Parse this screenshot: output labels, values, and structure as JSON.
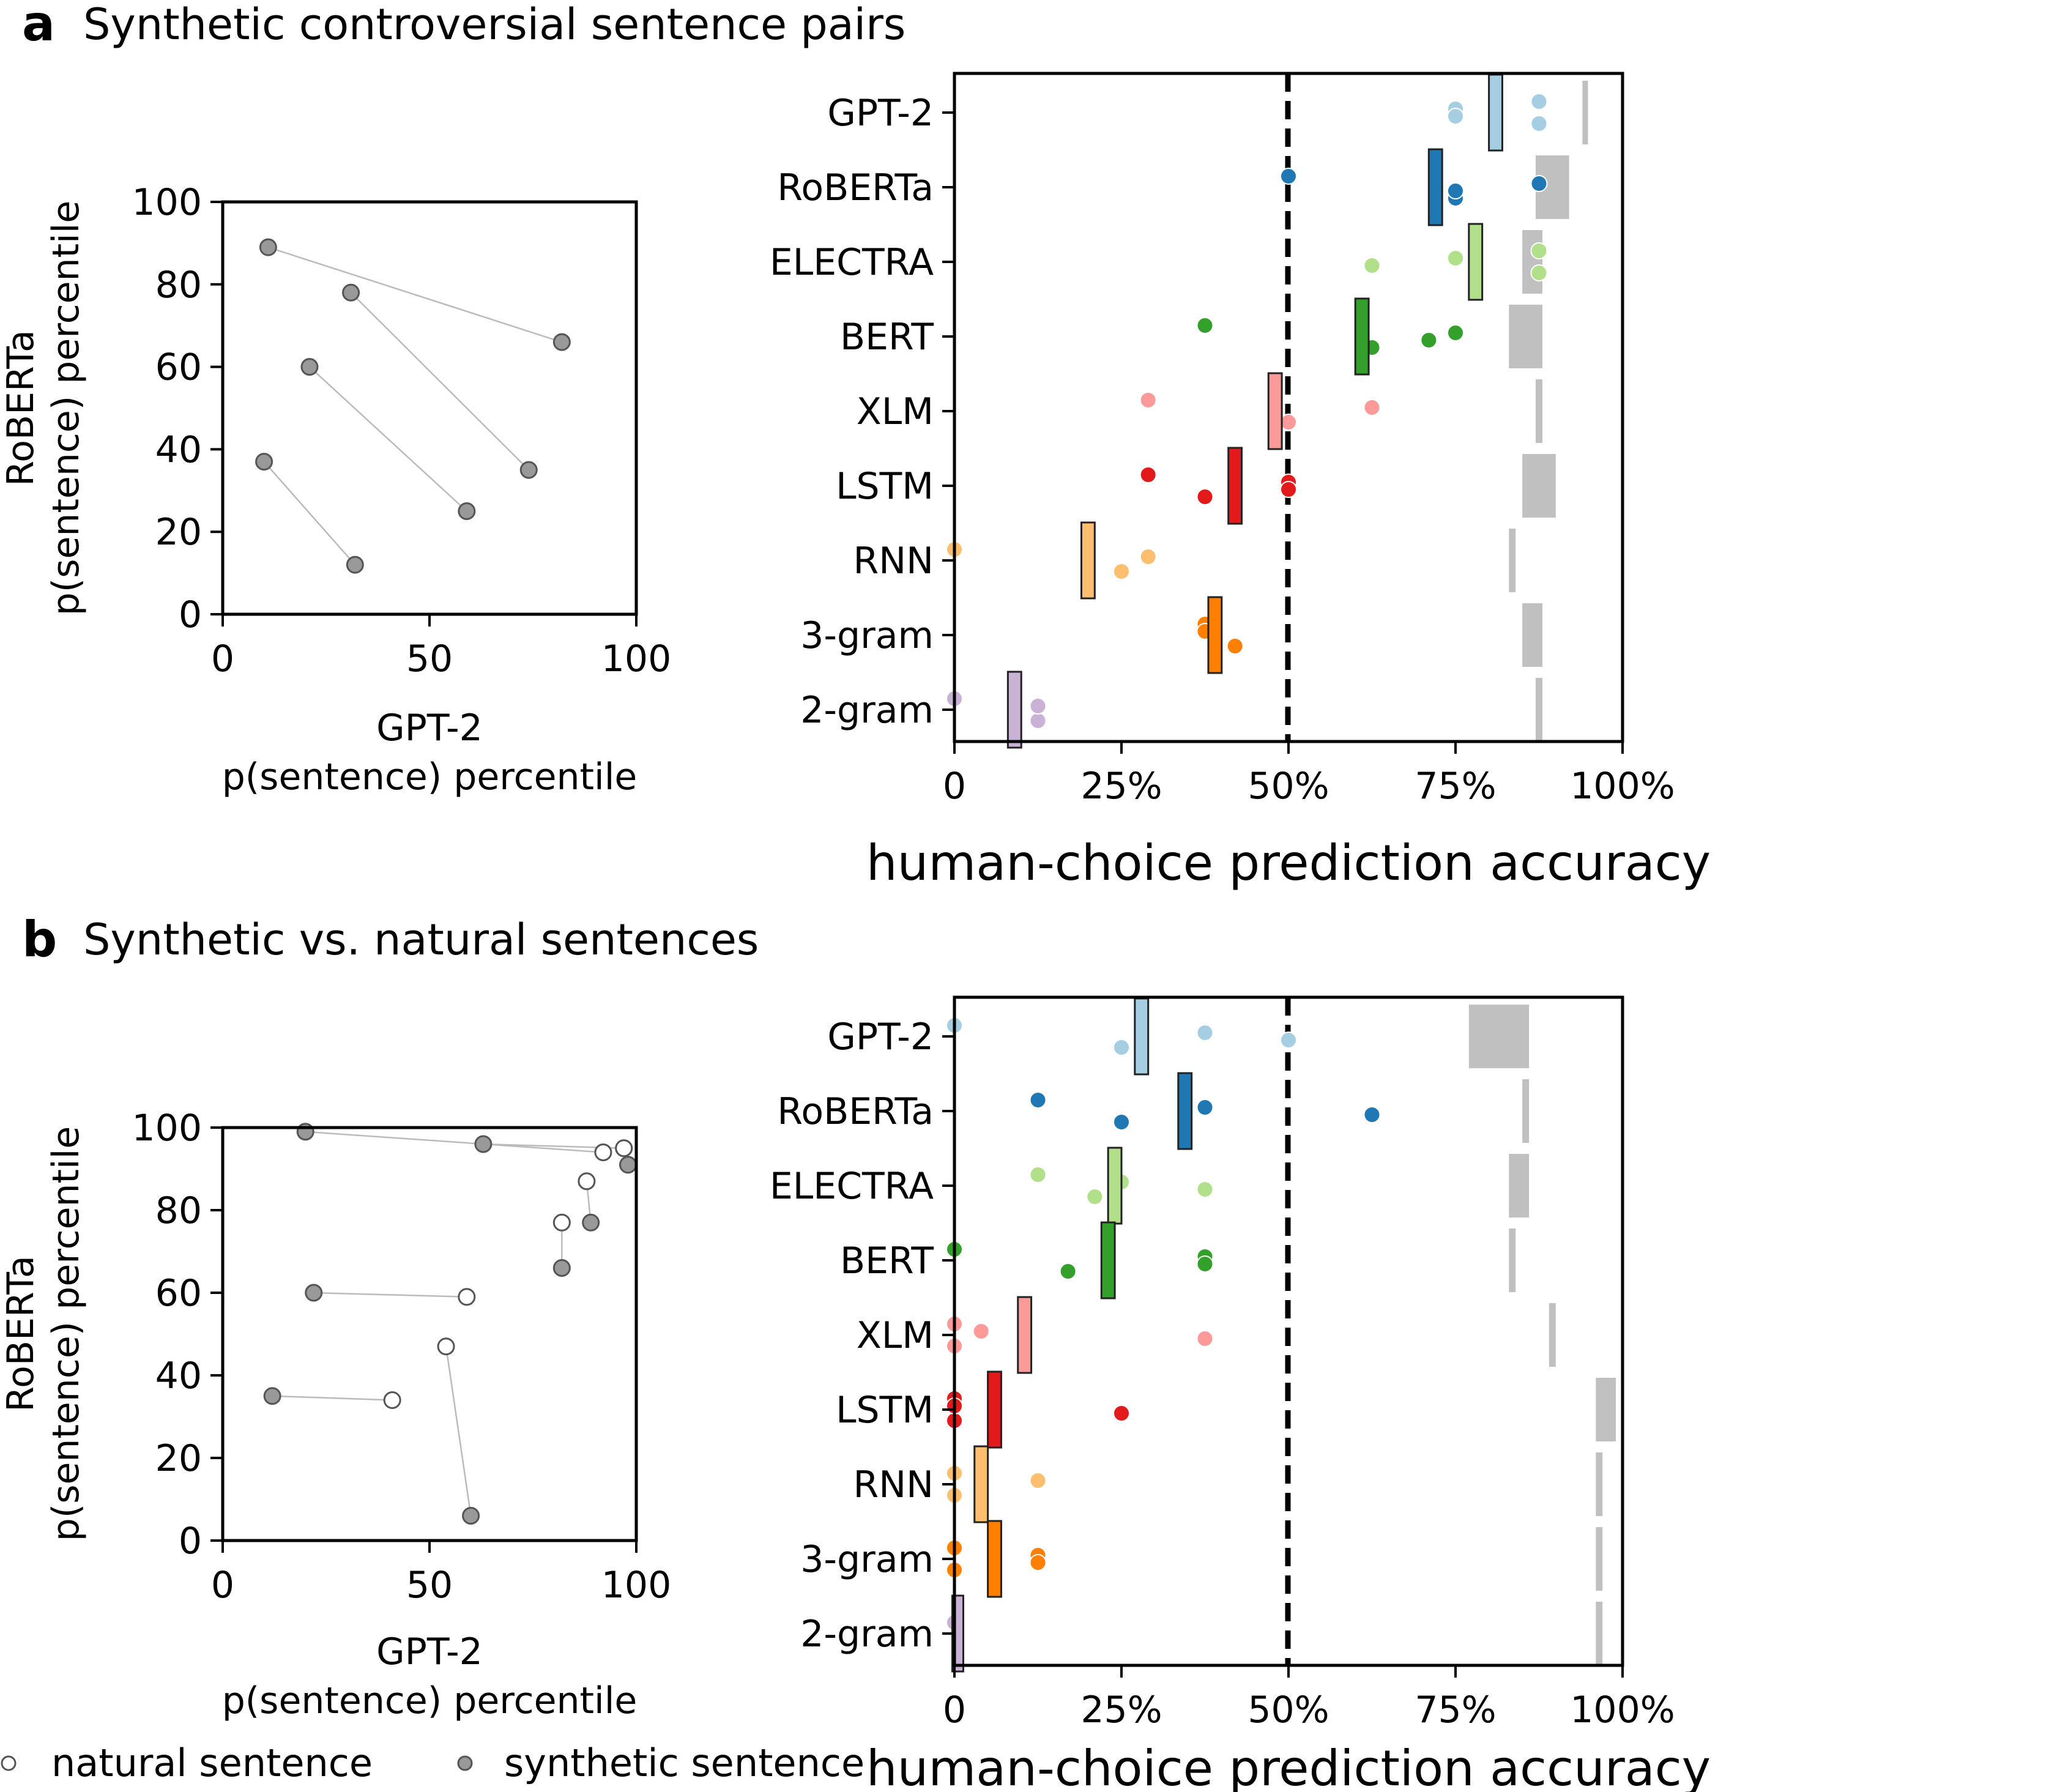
{
  "colors": {
    "GPT-2": "#a6cee3",
    "RoBERTa": "#1f78b4",
    "ELECTRA": "#b2df8a",
    "BERT": "#33a02c",
    "XLM": "#fb9a99",
    "LSTM": "#e31a1c",
    "RNN": "#fdbf6f",
    "3-gram": "#ff7f00",
    "2-gram": "#cab2d6",
    "noise_ceiling": "#c0c0c0",
    "synthetic_point": "#999999",
    "natural_point": "#ffffff",
    "pair_line": "#bbbbbb"
  },
  "legend": {
    "natural": "natural sentence",
    "synthetic": "synthetic sentence"
  },
  "panels": [
    {
      "letter": "a",
      "title": "Synthetic controversial sentence pairs",
      "scatter": {
        "xlabel_line1": "GPT-2",
        "xlabel_line2": "p(sentence) percentile",
        "ylabel_line1": "RoBERTa",
        "ylabel_line2": "p(sentence) percentile",
        "xticks": [
          "0",
          "50",
          "100"
        ],
        "yticks": [
          "0",
          "20",
          "40",
          "60",
          "80",
          "100"
        ]
      },
      "accuracy": {
        "xlabel": "human-choice prediction accuracy",
        "xticks": [
          "0",
          "25%",
          "50%",
          "75%",
          "100%"
        ]
      }
    },
    {
      "letter": "b",
      "title": "Synthetic vs. natural sentences",
      "scatter": {
        "xlabel_line1": "GPT-2",
        "xlabel_line2": "p(sentence) percentile",
        "ylabel_line1": "RoBERTa",
        "ylabel_line2": "p(sentence) percentile",
        "xticks": [
          "0",
          "50",
          "100"
        ],
        "yticks": [
          "0",
          "20",
          "40",
          "60",
          "80",
          "100"
        ]
      },
      "accuracy": {
        "xlabel": "human-choice prediction accuracy",
        "xticks": [
          "0",
          "25%",
          "50%",
          "75%",
          "100%"
        ]
      }
    }
  ],
  "chart_data": [
    {
      "type": "scatter",
      "panel": "a",
      "xlim": [
        0,
        100
      ],
      "ylim": [
        0,
        100
      ],
      "pairs": [
        {
          "points": [
            {
              "x": 11,
              "y": 89,
              "kind": "synthetic"
            },
            {
              "x": 82,
              "y": 66,
              "kind": "synthetic"
            }
          ]
        },
        {
          "points": [
            {
              "x": 31,
              "y": 78,
              "kind": "synthetic"
            },
            {
              "x": 74,
              "y": 35,
              "kind": "synthetic"
            }
          ]
        },
        {
          "points": [
            {
              "x": 21,
              "y": 60,
              "kind": "synthetic"
            },
            {
              "x": 59,
              "y": 25,
              "kind": "synthetic"
            }
          ]
        },
        {
          "points": [
            {
              "x": 10,
              "y": 37,
              "kind": "synthetic"
            },
            {
              "x": 32,
              "y": 12,
              "kind": "synthetic"
            }
          ]
        }
      ]
    },
    {
      "type": "scatter",
      "panel": "a",
      "xlim": [
        0,
        1
      ],
      "models": [
        "GPT-2",
        "RoBERTa",
        "ELECTRA",
        "BERT",
        "XLM",
        "LSTM",
        "RNN",
        "3-gram",
        "2-gram"
      ],
      "mean_accuracy": [
        0.81,
        0.72,
        0.78,
        0.61,
        0.48,
        0.42,
        0.2,
        0.39,
        0.09
      ],
      "ci": [
        [
          0.8,
          0.82
        ],
        [
          0.71,
          0.73
        ],
        [
          0.77,
          0.79
        ],
        [
          0.6,
          0.62
        ],
        [
          0.47,
          0.49
        ],
        [
          0.41,
          0.43
        ],
        [
          0.19,
          0.21
        ],
        [
          0.38,
          0.4
        ],
        [
          0.08,
          0.1
        ]
      ],
      "subject_accuracies": [
        [
          0.875,
          0.875,
          0.75,
          0.75
        ],
        [
          0.5,
          0.75,
          0.875,
          0.75
        ],
        [
          0.875,
          0.875,
          0.75,
          0.625
        ],
        [
          0.375,
          0.625,
          0.75,
          0.71
        ],
        [
          0.29,
          0.5,
          0.625
        ],
        [
          0.29,
          0.375,
          0.5,
          0.5
        ],
        [
          0.0,
          0.25,
          0.29
        ],
        [
          0.375,
          0.42,
          0.375
        ],
        [
          0.0,
          0.125,
          0.125
        ]
      ],
      "noise_ceiling": [
        [
          0.94,
          0.94
        ],
        [
          0.87,
          0.92
        ],
        [
          0.85,
          0.88
        ],
        [
          0.83,
          0.88
        ],
        [
          0.87,
          0.88
        ],
        [
          0.85,
          0.9
        ],
        [
          0.83,
          0.84
        ],
        [
          0.85,
          0.88
        ],
        [
          0.87,
          0.88
        ]
      ]
    },
    {
      "type": "scatter",
      "panel": "b",
      "xlim": [
        0,
        100
      ],
      "ylim": [
        0,
        100
      ],
      "pairs": [
        {
          "points": [
            {
              "x": 20,
              "y": 99,
              "kind": "synthetic"
            },
            {
              "x": 92,
              "y": 94,
              "kind": "natural"
            }
          ]
        },
        {
          "points": [
            {
              "x": 63,
              "y": 96,
              "kind": "synthetic"
            },
            {
              "x": 97,
              "y": 95,
              "kind": "natural"
            }
          ]
        },
        {
          "points": [
            {
              "x": 97,
              "y": 95,
              "kind": "natural"
            },
            {
              "x": 98,
              "y": 91,
              "kind": "synthetic"
            }
          ]
        },
        {
          "points": [
            {
              "x": 88,
              "y": 87,
              "kind": "natural"
            },
            {
              "x": 89,
              "y": 77,
              "kind": "synthetic"
            }
          ]
        },
        {
          "points": [
            {
              "x": 82,
              "y": 77,
              "kind": "natural"
            },
            {
              "x": 82,
              "y": 66,
              "kind": "synthetic"
            }
          ]
        },
        {
          "points": [
            {
              "x": 22,
              "y": 60,
              "kind": "synthetic"
            },
            {
              "x": 59,
              "y": 59,
              "kind": "natural"
            }
          ]
        },
        {
          "points": [
            {
              "x": 54,
              "y": 47,
              "kind": "natural"
            },
            {
              "x": 60,
              "y": 6,
              "kind": "synthetic"
            }
          ]
        },
        {
          "points": [
            {
              "x": 12,
              "y": 35,
              "kind": "synthetic"
            },
            {
              "x": 41,
              "y": 34,
              "kind": "natural"
            }
          ]
        }
      ]
    },
    {
      "type": "scatter",
      "panel": "b",
      "xlim": [
        0,
        1
      ],
      "models": [
        "GPT-2",
        "RoBERTa",
        "ELECTRA",
        "BERT",
        "XLM",
        "LSTM",
        "RNN",
        "3-gram",
        "2-gram"
      ],
      "mean_accuracy": [
        0.28,
        0.345,
        0.24,
        0.23,
        0.105,
        0.06,
        0.04,
        0.06,
        0.005
      ],
      "ci": [
        [
          0.27,
          0.29
        ],
        [
          0.335,
          0.355
        ],
        [
          0.23,
          0.25
        ],
        [
          0.22,
          0.24
        ],
        [
          0.095,
          0.115
        ],
        [
          0.05,
          0.07
        ],
        [
          0.03,
          0.05
        ],
        [
          0.05,
          0.07
        ],
        [
          0.0,
          0.01
        ]
      ],
      "subject_accuracies": [
        [
          0.0,
          0.25,
          0.375,
          0.5
        ],
        [
          0.125,
          0.25,
          0.375,
          0.625
        ],
        [
          0.125,
          0.21,
          0.25,
          0.375
        ],
        [
          0.0,
          0.17,
          0.375,
          0.375
        ],
        [
          0.0,
          0.0,
          0.04,
          0.375
        ],
        [
          0.0,
          0.0,
          0.0,
          0.25
        ],
        [
          0.0,
          0.0,
          0.125
        ],
        [
          0.0,
          0.0,
          0.125,
          0.125
        ],
        [
          0.0
        ]
      ],
      "noise_ceiling": [
        [
          0.77,
          0.86
        ],
        [
          0.85,
          0.86
        ],
        [
          0.83,
          0.86
        ],
        [
          0.83,
          0.84
        ],
        [
          0.89,
          0.9
        ],
        [
          0.96,
          0.99
        ],
        [
          0.96,
          0.97
        ],
        [
          0.96,
          0.97
        ],
        [
          0.96,
          0.97
        ]
      ]
    }
  ]
}
